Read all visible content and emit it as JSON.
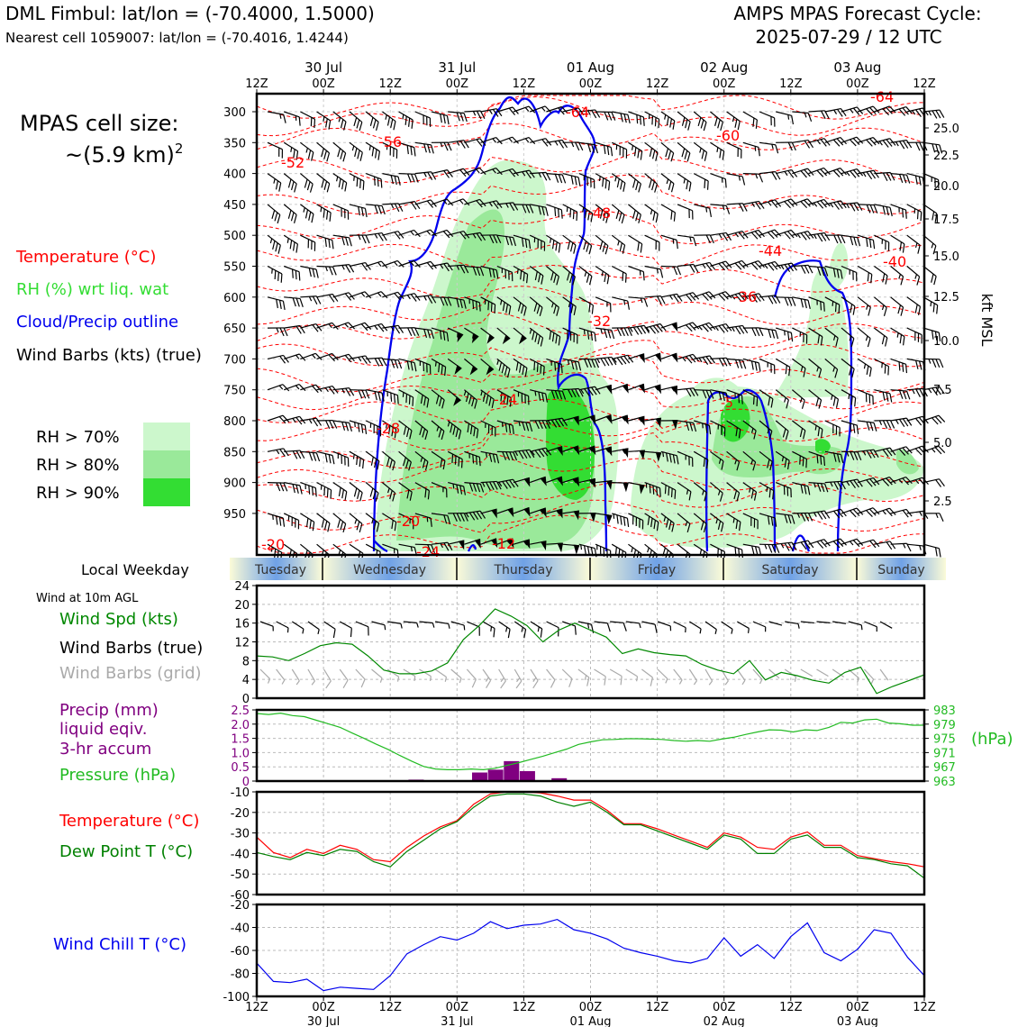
{
  "header": {
    "site_line": "DML Fimbul: lat/lon = (-70.4000, 1.5000)",
    "cell_line": "Nearest cell 1059007: lat/lon = (-70.4016, 1.4244)",
    "cycle_line1": "AMPS MPAS Forecast Cycle:",
    "cycle_line2": "2025-07-29 / 12 UTC"
  },
  "left_panel": {
    "cell_size_1": "MPAS cell size:",
    "cell_size_2": "~(5.9 km)",
    "cell_size_sup": "2",
    "legend_temp": "Temperature (°C)",
    "legend_rh": "RH (%) wrt liq. wat",
    "legend_cloud": "Cloud/Precip outline",
    "legend_wind": "Wind Barbs (kts) (true)",
    "rh70": "RH > 70%",
    "rh80": "RH > 80%",
    "rh90": "RH > 90%",
    "weekday_label": "Local Weekday",
    "wind10_title": "Wind at 10m AGL",
    "wind_spd": "Wind Spd (kts)",
    "wind_barbs_true": "Wind Barbs (true)",
    "wind_barbs_grid": "Wind Barbs (grid)",
    "precip_1": "Precip (mm)",
    "precip_2": "liquid eqiv.",
    "precip_3": "3-hr accum",
    "pressure": "Pressure (hPa)",
    "temp": "Temperature (°C)",
    "dewpt": "Dew Point T (°C)",
    "windchill": "Wind Chill T (°C)"
  },
  "colors": {
    "temp": "#ff0000",
    "rh_label": "#33dd33",
    "cloud": "#0000ee",
    "rh70": "#ccf7cc",
    "rh80": "#9ae99a",
    "rh90": "#33dd33",
    "wind_spd": "#008800",
    "grid_barb": "#aaaaaa",
    "precip": "#800080",
    "pressure": "#22bb22",
    "dewpt": "#008000",
    "windchill": "#0000ee"
  },
  "chart_data": {
    "time_axis": {
      "ticks": [
        "12Z",
        "00Z",
        "12Z",
        "00Z",
        "12Z",
        "00Z",
        "12Z",
        "00Z",
        "12Z",
        "00Z",
        "12Z"
      ],
      "dates": [
        "30 Jul",
        "31 Jul",
        "01 Aug",
        "02 Aug",
        "03 Aug"
      ]
    },
    "weekdays": [
      "Tuesday",
      "Wednesday",
      "Thursday",
      "Friday",
      "Saturday",
      "Sunday"
    ],
    "cross_section": {
      "type": "heatmap",
      "y_ticks_hpa": [
        "300",
        "350",
        "400",
        "450",
        "500",
        "550",
        "600",
        "650",
        "700",
        "750",
        "800",
        "850",
        "900",
        "950"
      ],
      "right_ticks_kft": [
        "25.0",
        "22.5",
        "20.0",
        "17.5",
        "15.0",
        "12.5",
        "10.0",
        "7.5",
        "5.0",
        "2.5"
      ],
      "right_label": "kft MSL",
      "temp_labels": [
        "-64",
        "-56",
        "-52",
        "-60",
        "-64",
        "-48",
        "-44",
        "-40",
        "-36",
        "-32",
        "-28",
        "-24",
        "-20",
        "-20",
        "-24",
        "-12",
        "-5"
      ]
    },
    "wind10": {
      "type": "line",
      "y_ticks": [
        "0",
        "4",
        "8",
        "12",
        "16",
        "20",
        "24"
      ],
      "ylim": [
        0,
        24
      ],
      "speed": [
        9,
        8.8,
        8,
        9.5,
        11.2,
        11.8,
        11.5,
        9,
        6,
        5.2,
        5.2,
        5.8,
        7.5,
        12.5,
        15.5,
        19,
        17.5,
        15.5,
        12,
        14.5,
        16,
        14.5,
        13,
        9.5,
        10.5,
        9.7,
        9.3,
        9,
        7.2,
        6,
        5.2,
        8,
        3.9,
        5.5,
        4.8,
        3.8,
        3.2,
        5.5,
        6.6,
        1,
        2.5,
        3.7,
        5
      ]
    },
    "precip_pressure": {
      "type": "bar",
      "precip_ticks": [
        "0",
        "0.5",
        "1.0",
        "1.5",
        "2.0",
        "2.5"
      ],
      "precip_ylim": [
        0,
        2.5
      ],
      "pressure_ticks": [
        "963",
        "967",
        "971",
        "975",
        "979",
        "983"
      ],
      "pressure_label": "(hPa)",
      "pressure_ylim": [
        963,
        983
      ],
      "precip": [
        0,
        0,
        0,
        0,
        0,
        0,
        0,
        0,
        0,
        0,
        0.05,
        0,
        0,
        0,
        0.3,
        0.4,
        0.7,
        0.35,
        0,
        0.1,
        0,
        0,
        0,
        0,
        0,
        0,
        0,
        0,
        0,
        0,
        0,
        0,
        0,
        0,
        0,
        0,
        0,
        0,
        0,
        0,
        0,
        0,
        0
      ],
      "pressure": [
        982,
        981.7,
        982.1,
        981.4,
        981.1,
        980.1,
        979.1,
        978.1,
        976.5,
        975,
        973.4,
        971.9,
        970.2,
        968.6,
        967.1,
        966.4,
        966.2,
        966.2,
        966.4,
        966.2,
        966.6,
        967.4,
        968.2,
        969.1,
        970,
        971,
        972,
        973.3,
        974,
        974.6,
        974.7,
        974.9,
        974.9,
        974.8,
        974.7,
        974.4,
        974.2,
        974.4,
        974.2,
        974.8,
        975.3,
        976.1,
        976.8,
        977.4,
        977.3,
        976.8,
        977.4,
        977.2,
        978.1,
        979.5,
        979.3,
        980.2,
        980.4,
        979.3,
        979.1,
        978.7,
        978.7
      ]
    },
    "temperature": {
      "type": "line",
      "y_ticks": [
        "-60",
        "-50",
        "-40",
        "-30",
        "-20",
        "-10"
      ],
      "ylim": [
        -60,
        -10
      ],
      "temp": [
        -32,
        -39.5,
        -42,
        -38,
        -40,
        -36,
        -38,
        -43,
        -44,
        -37,
        -31.5,
        -27,
        -24,
        -16,
        -11,
        -10,
        -10,
        -10.5,
        -12,
        -14,
        -14,
        -19,
        -25.5,
        -25.5,
        -28,
        -31,
        -34,
        -37,
        -30,
        -32,
        -37,
        -38,
        -32,
        -29.5,
        -36,
        -36,
        -41,
        -42.5,
        -44,
        -45,
        -46.5
      ],
      "dewpt": [
        -39.5,
        -41.5,
        -43,
        -39.5,
        -41,
        -38,
        -39,
        -44,
        -46.5,
        -39,
        -33.5,
        -28,
        -24.5,
        -17.5,
        -12,
        -11,
        -11,
        -12,
        -15,
        -17,
        -15,
        -20,
        -26,
        -26,
        -29,
        -32,
        -35,
        -38,
        -31,
        -33,
        -40,
        -40,
        -33,
        -31,
        -37,
        -37,
        -42,
        -43,
        -45,
        -46,
        -52
      ]
    },
    "wind_chill": {
      "type": "line",
      "y_ticks": [
        "-100",
        "-80",
        "-60",
        "-40",
        "-20"
      ],
      "ylim": [
        -100,
        -20
      ],
      "values": [
        -71,
        -87,
        -88,
        -85,
        -95,
        -92,
        -93,
        -94,
        -82,
        -63,
        -55,
        -48,
        -51,
        -45,
        -35,
        -41,
        -38,
        -37,
        -33,
        -42,
        -45,
        -50,
        -58,
        -62,
        -65,
        -69,
        -71,
        -67,
        -49,
        -65,
        -55,
        -67,
        -48,
        -36,
        -62,
        -69,
        -59,
        -42,
        -45,
        -66,
        -82
      ]
    }
  }
}
